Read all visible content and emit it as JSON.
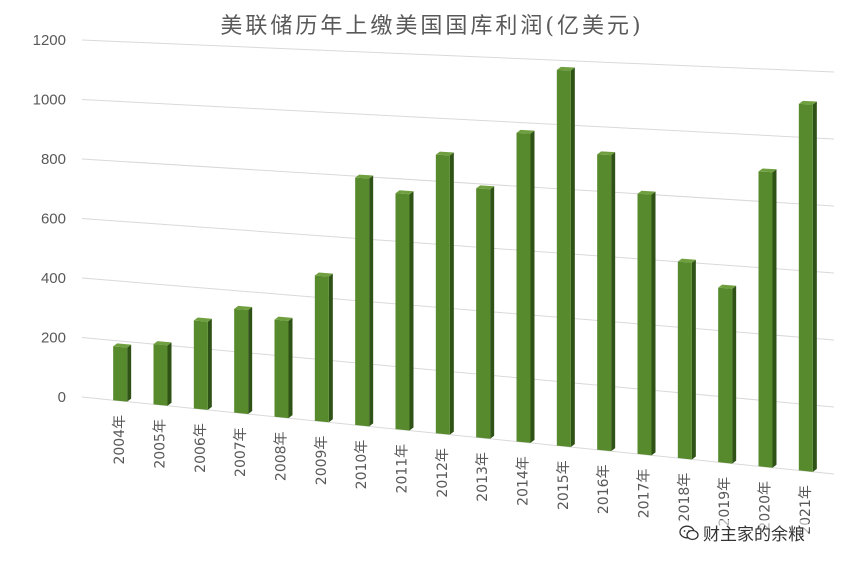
{
  "chart_data": {
    "type": "bar",
    "title": "美联储历年上缴美国国库利润(亿美元)",
    "xlabel": "",
    "ylabel": "",
    "ylim": [
      0,
      1200
    ],
    "yticks": [
      0,
      200,
      400,
      600,
      800,
      1000,
      1200
    ],
    "grid": true,
    "legend": "none",
    "categories": [
      "2004年",
      "2005年",
      "2006年",
      "2007年",
      "2008年",
      "2009年",
      "2010年",
      "2011年",
      "2012年",
      "2013年",
      "2014年",
      "2015年",
      "2016年",
      "2017年",
      "2018年",
      "2019年",
      "2020年",
      "2021年"
    ],
    "series": [
      {
        "values": [
          180,
          200,
          290,
          340,
          316,
          470,
          795,
          753,
          884,
          785,
          967,
          1170,
          914,
          800,
          600,
          530,
          890,
          1100
        ]
      }
    ],
    "colors": {
      "bar_front": "#578a2c",
      "bar_side": "#2f5216",
      "bar_top": "#6f9f3f",
      "grid": "#d9d9d9",
      "text": "#595959"
    }
  },
  "watermark": {
    "icon": "wechat-icon",
    "text": "财主家的余粮"
  }
}
